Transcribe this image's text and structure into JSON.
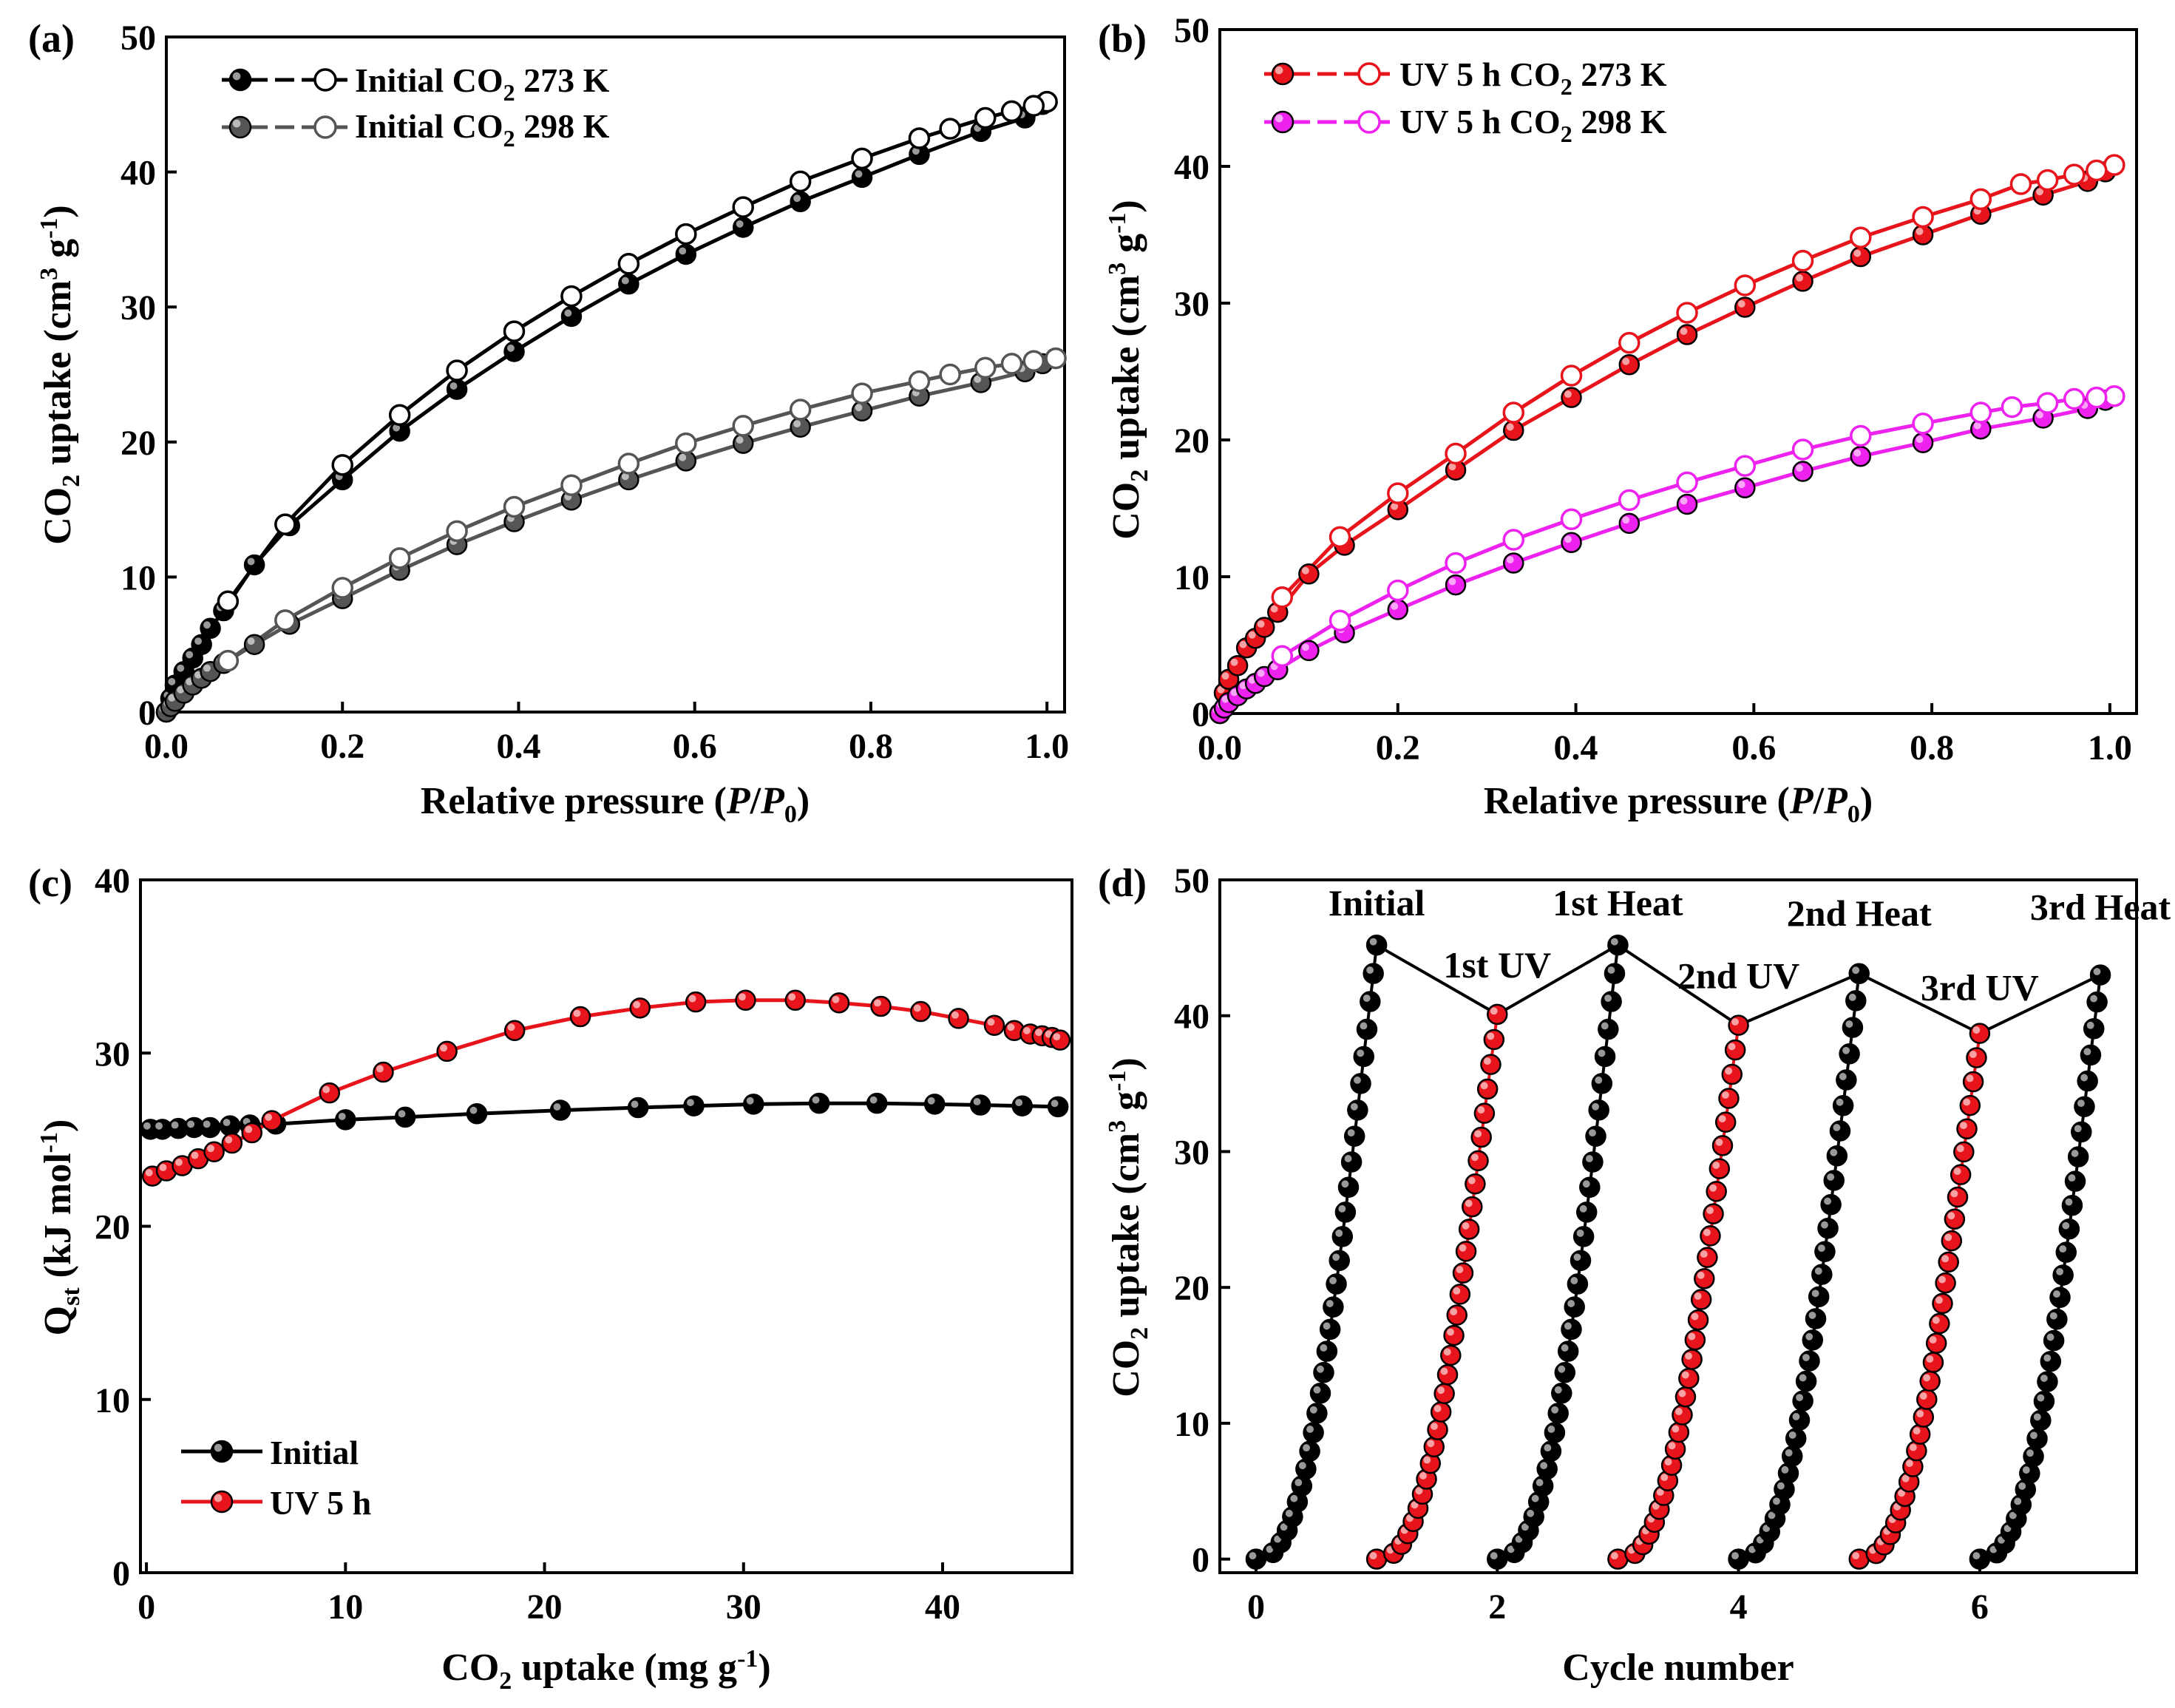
{
  "chart_data": [
    {
      "type": "scatter",
      "panel_label": "(a)",
      "xlabel": "Relative pressure (P/P0)",
      "ylabel": "CO2 uptake (cm3 g-1)",
      "xlim": [
        0,
        1.02
      ],
      "ylim": [
        0,
        50
      ],
      "xticks": [
        0,
        0.2,
        0.4,
        0.6,
        0.8,
        1.0
      ],
      "xtick_labels": [
        "0.0",
        "0.2",
        "0.4",
        "0.6",
        "0.8",
        "1.0"
      ],
      "yticks": [
        0,
        10,
        20,
        30,
        40,
        50
      ],
      "ytick_labels": [
        "0",
        "10",
        "20",
        "30",
        "40",
        "50"
      ],
      "legend_position": "top-left",
      "series": [
        {
          "name": "Initial CO2 273 K",
          "legend_text": "Initial CO",
          "legend_sub": "2",
          "legend_tail": " 273 K",
          "color": "#000000",
          "ads_x": [
            0.0,
            0.005,
            0.01,
            0.02,
            0.03,
            0.04,
            0.05,
            0.065,
            0.1,
            0.14,
            0.2,
            0.265,
            0.33,
            0.395,
            0.46,
            0.525,
            0.59,
            0.655,
            0.72,
            0.79,
            0.855,
            0.925,
            0.975,
            0.995
          ],
          "ads_y": [
            0.0,
            1.0,
            2.0,
            3.0,
            4.0,
            5.0,
            6.2,
            7.5,
            10.9,
            13.8,
            17.2,
            20.8,
            23.9,
            26.7,
            29.3,
            31.7,
            33.9,
            35.9,
            37.8,
            39.6,
            41.3,
            43.0,
            44.0,
            45.0
          ],
          "des_x": [
            1.0,
            0.985,
            0.96,
            0.93,
            0.89,
            0.855,
            0.79,
            0.72,
            0.655,
            0.59,
            0.525,
            0.46,
            0.395,
            0.33,
            0.265,
            0.2,
            0.135,
            0.07
          ],
          "des_y": [
            45.2,
            44.9,
            44.5,
            44.0,
            43.2,
            42.5,
            41.0,
            39.3,
            37.4,
            35.4,
            33.2,
            30.8,
            28.2,
            25.3,
            22.0,
            18.3,
            13.9,
            8.2
          ]
        },
        {
          "name": "Initial CO2 298 K",
          "legend_text": "Initial CO",
          "legend_sub": "2",
          "legend_tail": " 298 K",
          "color": "#555555",
          "ads_x": [
            0.0,
            0.005,
            0.01,
            0.02,
            0.03,
            0.04,
            0.05,
            0.065,
            0.1,
            0.14,
            0.2,
            0.265,
            0.33,
            0.395,
            0.46,
            0.525,
            0.59,
            0.655,
            0.72,
            0.79,
            0.855,
            0.925,
            0.975,
            0.995
          ],
          "ads_y": [
            0.0,
            0.4,
            0.8,
            1.4,
            2.0,
            2.5,
            3.0,
            3.6,
            5.0,
            6.5,
            8.4,
            10.5,
            12.4,
            14.1,
            15.7,
            17.2,
            18.6,
            19.9,
            21.1,
            22.3,
            23.4,
            24.4,
            25.2,
            25.8
          ],
          "des_x": [
            1.01,
            0.985,
            0.96,
            0.93,
            0.89,
            0.855,
            0.79,
            0.72,
            0.655,
            0.59,
            0.525,
            0.46,
            0.395,
            0.33,
            0.265,
            0.2,
            0.135,
            0.07
          ],
          "des_y": [
            26.2,
            26.0,
            25.8,
            25.5,
            25.0,
            24.5,
            23.6,
            22.4,
            21.2,
            19.9,
            18.4,
            16.8,
            15.2,
            13.4,
            11.4,
            9.2,
            6.8,
            3.8
          ]
        }
      ]
    },
    {
      "type": "scatter",
      "panel_label": "(b)",
      "xlabel": "Relative pressure (P/P0)",
      "ylabel": "CO2 uptake (cm3 g-1)",
      "xlim": [
        0,
        1.03
      ],
      "ylim": [
        0,
        50
      ],
      "xticks": [
        0,
        0.2,
        0.4,
        0.6,
        0.8,
        1.0
      ],
      "xtick_labels": [
        "0.0",
        "0.2",
        "0.4",
        "0.6",
        "0.8",
        "1.0"
      ],
      "yticks": [
        0,
        10,
        20,
        30,
        40,
        50
      ],
      "ytick_labels": [
        "0",
        "10",
        "20",
        "30",
        "40",
        "50"
      ],
      "legend_position": "top-left",
      "series": [
        {
          "name": "UV 5 h CO2 273 K",
          "legend_text": "UV 5 h CO",
          "legend_sub": "2",
          "legend_tail": " 273 K",
          "color": "#e8141c",
          "ads_x": [
            0.0,
            0.005,
            0.01,
            0.02,
            0.03,
            0.04,
            0.05,
            0.065,
            0.1,
            0.14,
            0.2,
            0.265,
            0.33,
            0.395,
            0.46,
            0.525,
            0.59,
            0.655,
            0.72,
            0.79,
            0.855,
            0.925,
            0.975,
            0.995
          ],
          "ads_y": [
            0.0,
            1.5,
            2.5,
            3.5,
            4.8,
            5.5,
            6.3,
            7.4,
            10.2,
            12.3,
            14.9,
            17.8,
            20.7,
            23.1,
            25.5,
            27.7,
            29.7,
            31.6,
            33.4,
            35.0,
            36.5,
            37.9,
            38.9,
            39.6
          ],
          "des_x": [
            1.005,
            0.985,
            0.96,
            0.93,
            0.9,
            0.855,
            0.79,
            0.72,
            0.655,
            0.59,
            0.525,
            0.46,
            0.395,
            0.33,
            0.265,
            0.2,
            0.135,
            0.07
          ],
          "des_y": [
            40.1,
            39.7,
            39.4,
            39.0,
            38.7,
            37.6,
            36.3,
            34.8,
            33.1,
            31.3,
            29.3,
            27.1,
            24.7,
            22.0,
            19.0,
            16.1,
            12.9,
            8.5
          ]
        },
        {
          "name": "UV 5 h CO2 298 K",
          "legend_text": "UV 5 h CO",
          "legend_sub": "2",
          "legend_tail": " 298 K",
          "color": "#ee22ee",
          "ads_x": [
            0.0,
            0.005,
            0.01,
            0.02,
            0.03,
            0.04,
            0.05,
            0.065,
            0.1,
            0.14,
            0.2,
            0.265,
            0.33,
            0.395,
            0.46,
            0.525,
            0.59,
            0.655,
            0.72,
            0.79,
            0.855,
            0.925,
            0.975,
            0.995
          ],
          "ads_y": [
            0.0,
            0.4,
            0.8,
            1.3,
            1.8,
            2.2,
            2.7,
            3.2,
            4.6,
            5.9,
            7.6,
            9.4,
            11.0,
            12.5,
            13.9,
            15.3,
            16.5,
            17.7,
            18.8,
            19.8,
            20.8,
            21.6,
            22.3,
            22.9
          ],
          "des_x": [
            1.005,
            0.985,
            0.96,
            0.93,
            0.89,
            0.855,
            0.79,
            0.72,
            0.655,
            0.59,
            0.525,
            0.46,
            0.395,
            0.33,
            0.265,
            0.2,
            0.135,
            0.07
          ],
          "des_y": [
            23.2,
            23.1,
            23.0,
            22.7,
            22.4,
            22.0,
            21.2,
            20.3,
            19.3,
            18.1,
            16.9,
            15.6,
            14.2,
            12.7,
            11.0,
            9.0,
            6.8,
            4.2
          ]
        }
      ]
    },
    {
      "type": "line",
      "panel_label": "(c)",
      "xlabel": "CO2 uptake (mg g-1)",
      "ylabel": "Qst (kJ mol-1)",
      "xlim": [
        -0.3,
        46.5
      ],
      "ylim": [
        0,
        40
      ],
      "xticks": [
        0,
        10,
        20,
        30,
        40
      ],
      "xtick_labels": [
        "0",
        "10",
        "20",
        "30",
        "40"
      ],
      "yticks": [
        0,
        10,
        20,
        30,
        40
      ],
      "ytick_labels": [
        "0",
        "10",
        "20",
        "30",
        "40"
      ],
      "legend_position": "bottom-left",
      "series": [
        {
          "name": "Initial",
          "color": "#000000",
          "x": [
            0.2,
            0.8,
            1.6,
            2.4,
            3.2,
            4.2,
            5.2,
            6.5,
            10.0,
            13.0,
            16.6,
            20.8,
            24.7,
            27.5,
            30.5,
            33.8,
            36.7,
            39.6,
            41.9,
            44.0,
            45.8
          ],
          "y": [
            25.6,
            25.6,
            25.65,
            25.7,
            25.7,
            25.8,
            25.85,
            25.9,
            26.15,
            26.3,
            26.5,
            26.7,
            26.85,
            26.95,
            27.05,
            27.1,
            27.1,
            27.05,
            27.0,
            26.95,
            26.9
          ]
        },
        {
          "name": "UV 5 h",
          "color": "#e8141c",
          "x": [
            0.3,
            1.0,
            1.8,
            2.6,
            3.4,
            4.3,
            5.3,
            6.3,
            9.2,
            11.9,
            15.1,
            18.5,
            21.8,
            24.8,
            27.6,
            30.1,
            32.6,
            34.8,
            36.9,
            38.9,
            40.8,
            42.6,
            43.6,
            44.4,
            45.0,
            45.5,
            45.9
          ],
          "y": [
            22.9,
            23.2,
            23.5,
            23.9,
            24.3,
            24.8,
            25.4,
            26.1,
            27.7,
            28.9,
            30.1,
            31.3,
            32.1,
            32.6,
            32.95,
            33.05,
            33.05,
            32.9,
            32.7,
            32.4,
            32.0,
            31.6,
            31.3,
            31.1,
            31.0,
            30.9,
            30.75
          ]
        }
      ]
    },
    {
      "type": "scatter",
      "panel_label": "(d)",
      "xlabel": "Cycle number",
      "ylabel": "CO2 uptake (cm3 g-1)",
      "xlim": [
        -0.3,
        7.3
      ],
      "ylim": [
        -1,
        50
      ],
      "xticks": [
        0,
        2,
        4,
        6
      ],
      "xtick_labels": [
        "0",
        "2",
        "4",
        "6"
      ],
      "yticks": [
        0,
        10,
        20,
        30,
        40,
        50
      ],
      "ytick_labels": [
        "0",
        "10",
        "20",
        "30",
        "40",
        "50"
      ],
      "cycles": [
        {
          "start": 0,
          "end": 1,
          "max": 45.2,
          "color": "#000000",
          "label": "Initial"
        },
        {
          "start": 1,
          "end": 2,
          "max": 40.1,
          "color": "#e8141c",
          "label": "1st UV"
        },
        {
          "start": 2,
          "end": 3,
          "max": 45.2,
          "color": "#000000",
          "label": "1st Heat"
        },
        {
          "start": 3,
          "end": 4,
          "max": 39.3,
          "color": "#e8141c",
          "label": "2nd UV"
        },
        {
          "start": 4,
          "end": 5,
          "max": 43.1,
          "color": "#000000",
          "label": "2nd Heat"
        },
        {
          "start": 5,
          "end": 6,
          "max": 38.7,
          "color": "#e8141c",
          "label": "3rd UV"
        },
        {
          "start": 6,
          "end": 7,
          "max": 43.0,
          "color": "#000000",
          "label": "3rd Heat"
        }
      ],
      "peak_connector": [
        [
          1,
          45.2
        ],
        [
          2,
          40.1
        ],
        [
          3,
          45.2
        ],
        [
          4,
          39.3
        ],
        [
          5,
          43.1
        ],
        [
          6,
          38.7
        ],
        [
          7,
          43.0
        ]
      ]
    }
  ],
  "legend_c": [
    {
      "label": "Initial",
      "color": "#000000"
    },
    {
      "label": "UV 5 h",
      "color": "#e8141c"
    }
  ],
  "texts": {
    "p_label": "P",
    "p0_label": "P",
    "p0_sub": "0",
    "rel_pre": "Relative pressure (",
    "rel_post": ")",
    "co2_a": "CO",
    "co2_sub": "2",
    "uptake_mid": " uptake (cm",
    "uptake_sup": "3",
    "uptake_g": " g",
    "uptake_minus1": "-1",
    "uptake_close": ")",
    "qst_q": "Q",
    "qst_sub": "st",
    "qst_mid": " (kJ mol",
    "qst_minus1": "-1",
    "qst_close": ")",
    "mg_mid": " uptake (mg g",
    "cycle_label": "Cycle number"
  }
}
